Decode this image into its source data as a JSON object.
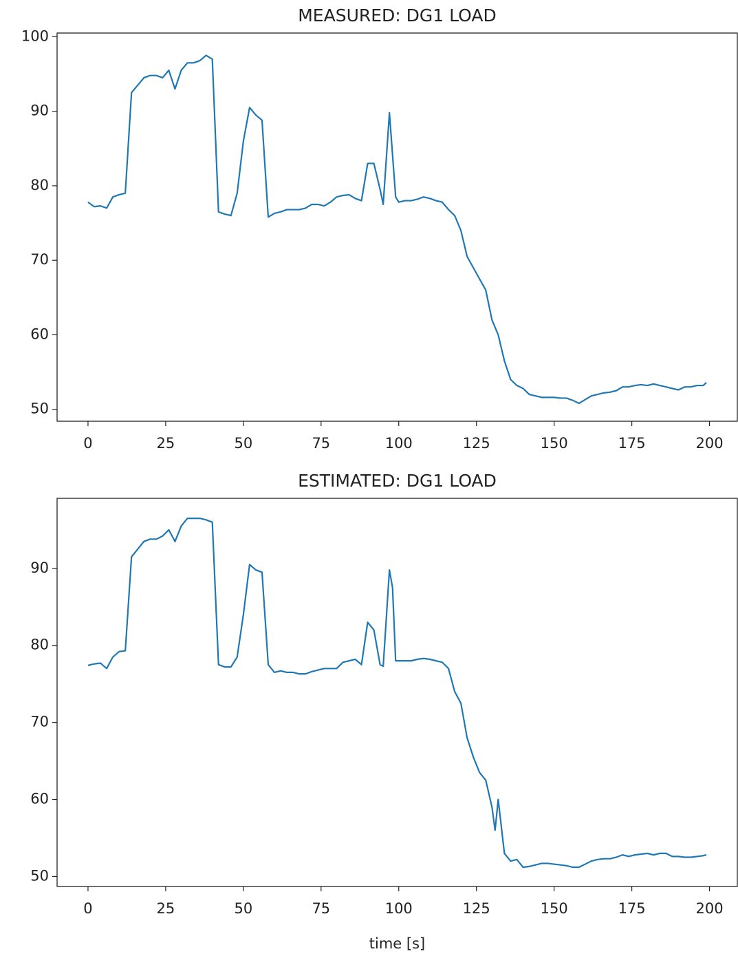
{
  "chart_data": [
    {
      "type": "line",
      "title": "MEASURED: DG1 LOAD",
      "x": [
        0,
        2,
        4,
        6,
        8,
        10,
        12,
        14,
        16,
        18,
        20,
        22,
        24,
        26,
        28,
        30,
        32,
        34,
        36,
        38,
        40,
        42,
        44,
        46,
        48,
        50,
        52,
        54,
        56,
        58,
        60,
        62,
        64,
        66,
        68,
        70,
        72,
        74,
        76,
        78,
        80,
        82,
        84,
        86,
        88,
        90,
        92,
        94,
        95,
        97,
        99,
        100,
        102,
        104,
        106,
        108,
        110,
        112,
        114,
        116,
        118,
        120,
        122,
        124,
        126,
        128,
        130,
        132,
        134,
        136,
        138,
        140,
        142,
        144,
        146,
        148,
        150,
        152,
        154,
        156,
        158,
        160,
        162,
        164,
        166,
        168,
        170,
        172,
        174,
        176,
        178,
        180,
        182,
        184,
        186,
        188,
        190,
        192,
        194,
        196,
        198,
        199
      ],
      "values": [
        77.8,
        77.2,
        77.3,
        77.0,
        78.5,
        78.8,
        79.0,
        92.5,
        93.5,
        94.5,
        94.8,
        94.8,
        94.5,
        95.5,
        93.0,
        95.5,
        96.5,
        96.5,
        96.8,
        97.5,
        97.0,
        76.5,
        76.2,
        76.0,
        79.0,
        86.0,
        90.5,
        89.5,
        88.8,
        75.8,
        76.3,
        76.5,
        76.8,
        76.8,
        76.8,
        77.0,
        77.5,
        77.5,
        77.3,
        77.8,
        78.5,
        78.7,
        78.8,
        78.3,
        78.0,
        83.0,
        83.0,
        79.5,
        77.5,
        89.8,
        78.5,
        77.8,
        78.0,
        78.0,
        78.2,
        78.5,
        78.3,
        78.0,
        77.8,
        76.8,
        76.0,
        74.0,
        70.5,
        69.0,
        67.5,
        66.0,
        62.0,
        60.0,
        56.5,
        54.0,
        53.2,
        52.8,
        52.0,
        51.8,
        51.6,
        51.6,
        51.6,
        51.5,
        51.5,
        51.2,
        50.8,
        51.3,
        51.8,
        52.0,
        52.2,
        52.3,
        52.5,
        53.0,
        53.0,
        53.2,
        53.3,
        53.2,
        53.4,
        53.2,
        53.0,
        52.8,
        52.6,
        53.0,
        53.0,
        53.2,
        53.2,
        53.6
      ],
      "color": "#1f77b4",
      "xlim": [
        -9.95,
        208.95
      ],
      "xticks": [
        0,
        25,
        50,
        75,
        100,
        125,
        150,
        175,
        200
      ],
      "ylim": [
        48.4,
        100.5
      ],
      "yticks": [
        50,
        60,
        70,
        80,
        90,
        100
      ]
    },
    {
      "type": "line",
      "title": "ESTIMATED: DG1 LOAD",
      "xlabel": "time [s]",
      "x": [
        0,
        2,
        4,
        6,
        8,
        10,
        12,
        14,
        16,
        18,
        20,
        22,
        24,
        26,
        28,
        30,
        32,
        34,
        36,
        38,
        40,
        42,
        44,
        46,
        48,
        50,
        52,
        54,
        56,
        58,
        60,
        62,
        64,
        66,
        68,
        70,
        72,
        74,
        76,
        78,
        80,
        82,
        84,
        86,
        88,
        90,
        92,
        94,
        95,
        97,
        98,
        99,
        100,
        102,
        104,
        106,
        108,
        110,
        112,
        114,
        116,
        118,
        120,
        122,
        124,
        126,
        128,
        130,
        131,
        132,
        134,
        136,
        138,
        140,
        142,
        144,
        146,
        148,
        150,
        152,
        154,
        156,
        158,
        160,
        162,
        164,
        166,
        168,
        170,
        172,
        174,
        176,
        178,
        180,
        182,
        184,
        186,
        188,
        190,
        192,
        194,
        196,
        198,
        199
      ],
      "values": [
        77.4,
        77.6,
        77.7,
        77.0,
        78.5,
        79.2,
        79.3,
        91.5,
        92.5,
        93.5,
        93.8,
        93.8,
        94.2,
        95.0,
        93.5,
        95.5,
        96.5,
        96.5,
        96.5,
        96.3,
        96.0,
        77.5,
        77.2,
        77.2,
        78.5,
        84.0,
        90.5,
        89.8,
        89.5,
        77.5,
        76.5,
        76.7,
        76.5,
        76.5,
        76.3,
        76.3,
        76.6,
        76.8,
        77.0,
        77.0,
        77.0,
        77.8,
        78.0,
        78.2,
        77.5,
        83.0,
        82.0,
        77.5,
        77.3,
        89.8,
        87.5,
        78.0,
        78.0,
        78.0,
        78.0,
        78.2,
        78.3,
        78.2,
        78.0,
        77.8,
        77.0,
        74.0,
        72.5,
        68.0,
        65.5,
        63.5,
        62.5,
        59.0,
        56.0,
        60.0,
        53.0,
        52.0,
        52.2,
        51.2,
        51.3,
        51.5,
        51.7,
        51.7,
        51.6,
        51.5,
        51.4,
        51.2,
        51.2,
        51.6,
        52.0,
        52.2,
        52.3,
        52.3,
        52.5,
        52.8,
        52.6,
        52.8,
        52.9,
        53.0,
        52.8,
        53.0,
        53.0,
        52.6,
        52.6,
        52.5,
        52.5,
        52.6,
        52.7,
        52.8
      ],
      "color": "#1f77b4",
      "xlim": [
        -9.95,
        208.95
      ],
      "xticks": [
        0,
        25,
        50,
        75,
        100,
        125,
        150,
        175,
        200
      ],
      "ylim": [
        48.7,
        99.1
      ],
      "yticks": [
        50,
        60,
        70,
        80,
        90
      ]
    }
  ]
}
